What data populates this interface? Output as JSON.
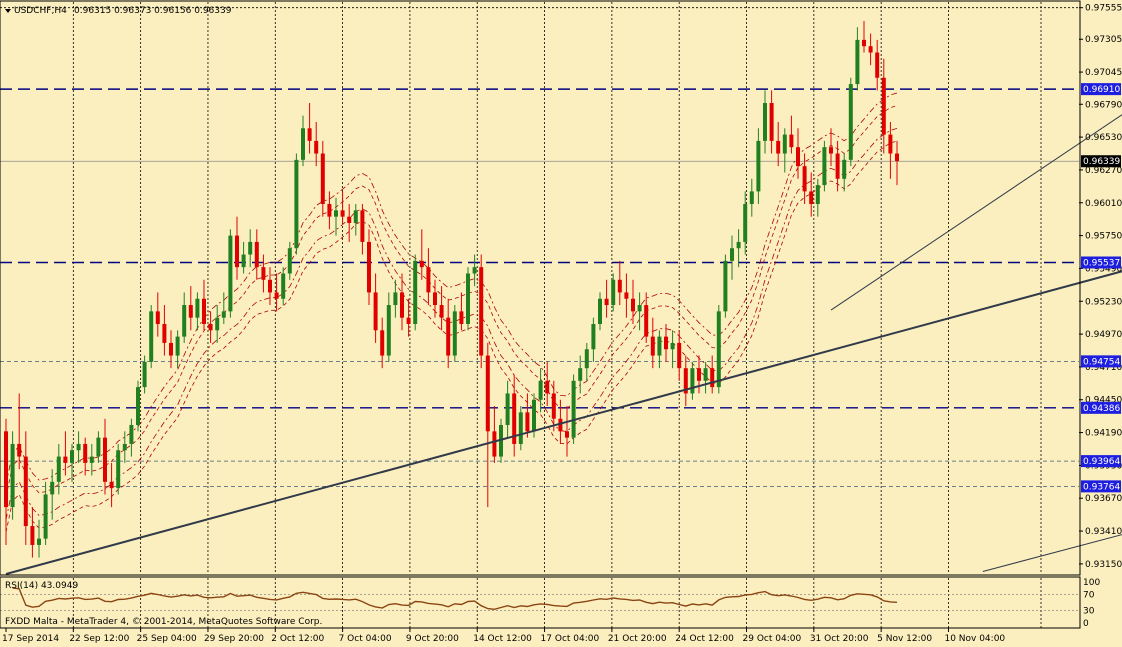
{
  "header": {
    "symbol": "USDCHF,H4",
    "ohlc": "0.96315 0.96373 0.96156 0.96339"
  },
  "rsi": {
    "label": "RSI(14) 43.0949",
    "value": 43.0949,
    "levels": [
      "100",
      "70",
      "30",
      "0"
    ]
  },
  "copyright": "FXDD Malta - MetaTrader 4, © 2001-2014, MetaQuotes Software Corp.",
  "colors": {
    "background": "#fcefbf",
    "bull": "#208020",
    "bear": "#e00000",
    "envelope": "#b00000",
    "hline": "#000080",
    "tag_bg": "#1e1ee0",
    "tag_text": "#ffffff",
    "trend": "#303a4a",
    "rsi": "#8b4513"
  },
  "chart_data": {
    "type": "candlestick",
    "title": "USDCHF,H4",
    "xlabel": "",
    "ylabel": "",
    "ylim": [
      0.9307,
      0.976
    ],
    "y_ticks": [
      "0.97555",
      "0.97305",
      "0.97045",
      "0.96790",
      "0.96530",
      "0.96270",
      "0.96010",
      "0.95750",
      "0.95490",
      "0.95230",
      "0.94970",
      "0.94710",
      "0.94450",
      "0.94190",
      "0.93930",
      "0.93670",
      "0.93410",
      "0.93150"
    ],
    "x_labels": [
      "17 Sep 2014",
      "22 Sep 12:00",
      "25 Sep 04:00",
      "29 Sep 20:00",
      "2 Oct 12:00",
      "7 Oct 04:00",
      "9 Oct 20:00",
      "14 Oct 12:00",
      "17 Oct 04:00",
      "21 Oct 20:00",
      "24 Oct 12:00",
      "29 Oct 04:00",
      "31 Oct 20:00",
      "5 Nov 12:00",
      "10 Nov 04:00"
    ],
    "current_price": "0.96339",
    "levels": [
      {
        "value": 0.9691,
        "label": "0.96910",
        "style": "dashed"
      },
      {
        "value": 0.95537,
        "label": "0.95537",
        "style": "dashed"
      },
      {
        "value": 0.94754,
        "label": "0.94754",
        "style": "dotted"
      },
      {
        "value": 0.94386,
        "label": "0.94386",
        "style": "dashed"
      },
      {
        "value": 0.93964,
        "label": "0.93964",
        "style": "dotted"
      },
      {
        "value": 0.93764,
        "label": "0.93764",
        "style": "dotted"
      }
    ],
    "trendlines": [
      {
        "from": [
          0,
          0.9307
        ],
        "to": [
          182,
          0.9565
        ],
        "width": 2
      },
      {
        "from": [
          125,
          0.9516
        ],
        "to": [
          182,
          0.9716
        ],
        "width": 1
      },
      {
        "from": [
          148,
          0.9309
        ],
        "to": [
          182,
          0.9356
        ],
        "width": 1
      }
    ],
    "grid": true,
    "series": [
      {
        "name": "",
        "points": [
          [
            "0.9420",
            "0.9430",
            "0.9330",
            "0.9360"
          ],
          [
            "0.9360",
            "0.9420",
            "0.9350",
            "0.9410"
          ],
          [
            "0.9410",
            "0.9450",
            "0.9390",
            "0.9400"
          ],
          [
            "0.9400",
            "0.9420",
            "0.9330",
            "0.9345"
          ],
          [
            "0.9345",
            "0.9360",
            "0.9320",
            "0.9330"
          ],
          [
            "0.9330",
            "0.9350",
            "0.9320",
            "0.9335"
          ],
          [
            "0.9335",
            "0.9380",
            "0.9330",
            "0.9370"
          ],
          [
            "0.9370",
            "0.9390",
            "0.9350",
            "0.9380"
          ],
          [
            "0.9380",
            "0.9410",
            "0.9370",
            "0.9400"
          ],
          [
            "0.9400",
            "0.9420",
            "0.9385",
            "0.9395"
          ],
          [
            "0.9395",
            "0.9410",
            "0.9380",
            "0.9405"
          ],
          [
            "0.9405",
            "0.9420",
            "0.9395",
            "0.9410"
          ],
          [
            "0.9410",
            "0.9415",
            "0.9385",
            "0.9395"
          ],
          [
            "0.9395",
            "0.9410",
            "0.9385",
            "0.9400"
          ],
          [
            "0.9400",
            "0.9420",
            "0.9395",
            "0.9415"
          ],
          [
            "0.9415",
            "0.9430",
            "0.9370",
            "0.9380"
          ],
          [
            "0.9380",
            "0.9395",
            "0.9360",
            "0.9375"
          ],
          [
            "0.9375",
            "0.9410",
            "0.9370",
            "0.9405"
          ],
          [
            "0.9405",
            "0.9420",
            "0.9395",
            "0.9410"
          ],
          [
            "0.9410",
            "0.9430",
            "0.9400",
            "0.9425"
          ],
          [
            "0.9425",
            "0.9460",
            "0.9420",
            "0.9455"
          ],
          [
            "0.9455",
            "0.9480",
            "0.9450",
            "0.9475"
          ],
          [
            "0.9475",
            "0.9520",
            "0.9470",
            "0.9515"
          ],
          [
            "0.9515",
            "0.9530",
            "0.9495",
            "0.9505"
          ],
          [
            "0.9505",
            "0.9520",
            "0.9480",
            "0.9490"
          ],
          [
            "0.9490",
            "0.9500",
            "0.9470",
            "0.9480"
          ],
          [
            "0.9480",
            "0.9500",
            "0.9470",
            "0.9495"
          ],
          [
            "0.9495",
            "0.9530",
            "0.9490",
            "0.9520"
          ],
          [
            "0.9520",
            "0.9535",
            "0.9500",
            "0.9510"
          ],
          [
            "0.9510",
            "0.9530",
            "0.9500",
            "0.9525"
          ],
          [
            "0.9525",
            "0.9540",
            "0.9500",
            "0.9505"
          ],
          [
            "0.9505",
            "0.9515",
            "0.9490",
            "0.9500"
          ],
          [
            "0.9500",
            "0.9520",
            "0.9490",
            "0.9510"
          ],
          [
            "0.9510",
            "0.9530",
            "0.9505",
            "0.9515"
          ],
          [
            "0.9515",
            "0.9580",
            "0.9510",
            "0.9575"
          ],
          [
            "0.9575",
            "0.9590",
            "0.9540",
            "0.9550"
          ],
          [
            "0.9550",
            "0.9570",
            "0.9545",
            "0.9560"
          ],
          [
            "0.9560",
            "0.9580",
            "0.9550",
            "0.9570"
          ],
          [
            "0.9570",
            "0.9580",
            "0.9540",
            "0.9550"
          ],
          [
            "0.9550",
            "0.9560",
            "0.9530",
            "0.9540"
          ],
          [
            "0.9540",
            "0.9550",
            "0.9520",
            "0.9530"
          ],
          [
            "0.9530",
            "0.9545",
            "0.9515",
            "0.9525"
          ],
          [
            "0.9525",
            "0.9550",
            "0.9520",
            "0.9545"
          ],
          [
            "0.9545",
            "0.9570",
            "0.9540",
            "0.9565"
          ],
          [
            "0.9565",
            "0.9640",
            "0.9560",
            "0.9635"
          ],
          [
            "0.9635",
            "0.9670",
            "0.9630",
            "0.9660"
          ],
          [
            "0.9660",
            "0.9680",
            "0.9640",
            "0.9650"
          ],
          [
            "0.9650",
            "0.9665",
            "0.9630",
            "0.9640"
          ],
          [
            "0.9640",
            "0.9650",
            "0.9590",
            "0.9600"
          ],
          [
            "0.9600",
            "0.9610",
            "0.9580",
            "0.9590"
          ],
          [
            "0.9590",
            "0.9605",
            "0.9575",
            "0.9595"
          ],
          [
            "0.9595",
            "0.9610",
            "0.9585",
            "0.9590"
          ],
          [
            "0.9590",
            "0.9600",
            "0.9570",
            "0.9585"
          ],
          [
            "0.9585",
            "0.9600",
            "0.9575",
            "0.9595"
          ],
          [
            "0.9595",
            "0.9600",
            "0.9560",
            "0.9570"
          ],
          [
            "0.9570",
            "0.9580",
            "0.9520",
            "0.9530"
          ],
          [
            "0.9530",
            "0.9545",
            "0.9490",
            "0.9500"
          ],
          [
            "0.9500",
            "0.9510",
            "0.9470",
            "0.9480"
          ],
          [
            "0.9480",
            "0.9530",
            "0.9475",
            "0.9520"
          ],
          [
            "0.9520",
            "0.9540",
            "0.9510",
            "0.9530"
          ],
          [
            "0.9530",
            "0.9545",
            "0.9500",
            "0.9510"
          ],
          [
            "0.9510",
            "0.9525",
            "0.9495",
            "0.9505"
          ],
          [
            "0.9505",
            "0.9560",
            "0.9500",
            "0.9555"
          ],
          [
            "0.9555",
            "0.9580",
            "0.9540",
            "0.9550"
          ],
          [
            "0.9550",
            "0.9565",
            "0.9520",
            "0.9530"
          ],
          [
            "0.9530",
            "0.9540",
            "0.9510",
            "0.9520"
          ],
          [
            "0.9520",
            "0.9535",
            "0.9500",
            "0.9510"
          ],
          [
            "0.9510",
            "0.9525",
            "0.9470",
            "0.9480"
          ],
          [
            "0.9480",
            "0.9520",
            "0.9475",
            "0.9515"
          ],
          [
            "0.9515",
            "0.9530",
            "0.9500",
            "0.9505"
          ],
          [
            "0.9505",
            "0.9550",
            "0.9500",
            "0.9545"
          ],
          [
            "0.9545",
            "0.9560",
            "0.9535",
            "0.9550"
          ],
          [
            "0.9550",
            "0.9560",
            "0.9470",
            "0.9480"
          ],
          [
            "0.9480",
            "0.9490",
            "0.9360",
            "0.9420"
          ],
          [
            "0.9420",
            "0.9440",
            "0.9395",
            "0.9400"
          ],
          [
            "0.9400",
            "0.9430",
            "0.9395",
            "0.9425"
          ],
          [
            "0.9425",
            "0.9460",
            "0.9415",
            "0.9450"
          ],
          [
            "0.9450",
            "0.9465",
            "0.9400",
            "0.9410"
          ],
          [
            "0.9410",
            "0.9440",
            "0.9405",
            "0.9435"
          ],
          [
            "0.9435",
            "0.9450",
            "0.9415",
            "0.9420"
          ],
          [
            "0.9420",
            "0.9450",
            "0.9415",
            "0.9445"
          ],
          [
            "0.9445",
            "0.9470",
            "0.9435",
            "0.9460"
          ],
          [
            "0.9460",
            "0.9475",
            "0.9440",
            "0.9450"
          ],
          [
            "0.9450",
            "0.9460",
            "0.9420",
            "0.9430"
          ],
          [
            "0.9430",
            "0.9445",
            "0.9410",
            "0.9420"
          ],
          [
            "0.9420",
            "0.9440",
            "0.9400",
            "0.9415"
          ],
          [
            "0.9415",
            "0.9465",
            "0.9410",
            "0.9460"
          ],
          [
            "0.9460",
            "0.9480",
            "0.9450",
            "0.9470"
          ],
          [
            "0.9470",
            "0.9490",
            "0.9460",
            "0.9485"
          ],
          [
            "0.9485",
            "0.9510",
            "0.9475",
            "0.9505"
          ],
          [
            "0.9505",
            "0.9530",
            "0.9500",
            "0.9525"
          ],
          [
            "0.9525",
            "0.9540",
            "0.9510",
            "0.9520"
          ],
          [
            "0.9520",
            "0.9545",
            "0.9515",
            "0.9540"
          ],
          [
            "0.9540",
            "0.9555",
            "0.9520",
            "0.9530"
          ],
          [
            "0.9530",
            "0.9545",
            "0.9510",
            "0.9525"
          ],
          [
            "0.9525",
            "0.9540",
            "0.9505",
            "0.9515"
          ],
          [
            "0.9515",
            "0.9530",
            "0.9500",
            "0.9520"
          ],
          [
            "0.9520",
            "0.9530",
            "0.9490",
            "0.9495"
          ],
          [
            "0.9495",
            "0.9510",
            "0.9470",
            "0.9480"
          ],
          [
            "0.9480",
            "0.9500",
            "0.9470",
            "0.9495"
          ],
          [
            "0.9495",
            "0.9505",
            "0.9475",
            "0.9485"
          ],
          [
            "0.9485",
            "0.9500",
            "0.9470",
            "0.9490"
          ],
          [
            "0.9490",
            "0.9500",
            "0.9460",
            "0.9470"
          ],
          [
            "0.9470",
            "0.9480",
            "0.9440",
            "0.9450"
          ],
          [
            "0.9450",
            "0.9475",
            "0.9445",
            "0.9470"
          ],
          [
            "0.9470",
            "0.9480",
            "0.9450",
            "0.9460"
          ],
          [
            "0.9460",
            "0.9475",
            "0.9450",
            "0.9470"
          ],
          [
            "0.9470",
            "0.9480",
            "0.9450",
            "0.9455"
          ],
          [
            "0.9455",
            "0.9520",
            "0.9450",
            "0.9515"
          ],
          [
            "0.9515",
            "0.9560",
            "0.9510",
            "0.9555"
          ],
          [
            "0.9555",
            "0.9575",
            "0.9540",
            "0.9565"
          ],
          [
            "0.9565",
            "0.9580",
            "0.9550",
            "0.9570"
          ],
          [
            "0.9570",
            "0.9610",
            "0.9560",
            "0.9600"
          ],
          [
            "0.9600",
            "0.9620",
            "0.9590",
            "0.9610"
          ],
          [
            "0.9610",
            "0.9660",
            "0.9600",
            "0.9650"
          ],
          [
            "0.9650",
            "0.9690",
            "0.9640",
            "0.9680"
          ],
          [
            "0.9680",
            "0.9690",
            "0.9640",
            "0.9650"
          ],
          [
            "0.9650",
            "0.9665",
            "0.9630",
            "0.9640"
          ],
          [
            "0.9640",
            "0.9660",
            "0.9625",
            "0.9655"
          ],
          [
            "0.9655",
            "0.9670",
            "0.9640",
            "0.9645"
          ],
          [
            "0.9645",
            "0.9660",
            "0.9620",
            "0.9630"
          ],
          [
            "0.9630",
            "0.9640",
            "0.9600",
            "0.9610"
          ],
          [
            "0.9610",
            "0.9625",
            "0.9590",
            "0.9600"
          ],
          [
            "0.9600",
            "0.9620",
            "0.9590",
            "0.9615"
          ],
          [
            "0.9615",
            "0.9650",
            "0.9610",
            "0.9645"
          ],
          [
            "0.9645",
            "0.9660",
            "0.9630",
            "0.9640"
          ],
          [
            "0.9640",
            "0.9650",
            "0.9610",
            "0.9620"
          ],
          [
            "0.9620",
            "0.9640",
            "0.9610",
            "0.9635"
          ],
          [
            "0.9635",
            "0.9700",
            "0.9630",
            "0.9695"
          ],
          [
            "0.9695",
            "0.9740",
            "0.9690",
            "0.9730"
          ],
          [
            "0.9730",
            "0.9745",
            "0.9720",
            "0.9725"
          ],
          [
            "0.9725",
            "0.9735",
            "0.9710",
            "0.9720"
          ],
          [
            "0.9720",
            "0.9730",
            "0.9690",
            "0.9700"
          ],
          [
            "0.9700",
            "0.9715",
            "0.9640",
            "0.9655"
          ],
          [
            "0.9655",
            "0.9665",
            "0.9620",
            "0.9640"
          ],
          [
            "0.9640",
            "0.9650",
            "0.9615",
            "0.9634"
          ]
        ]
      }
    ]
  }
}
